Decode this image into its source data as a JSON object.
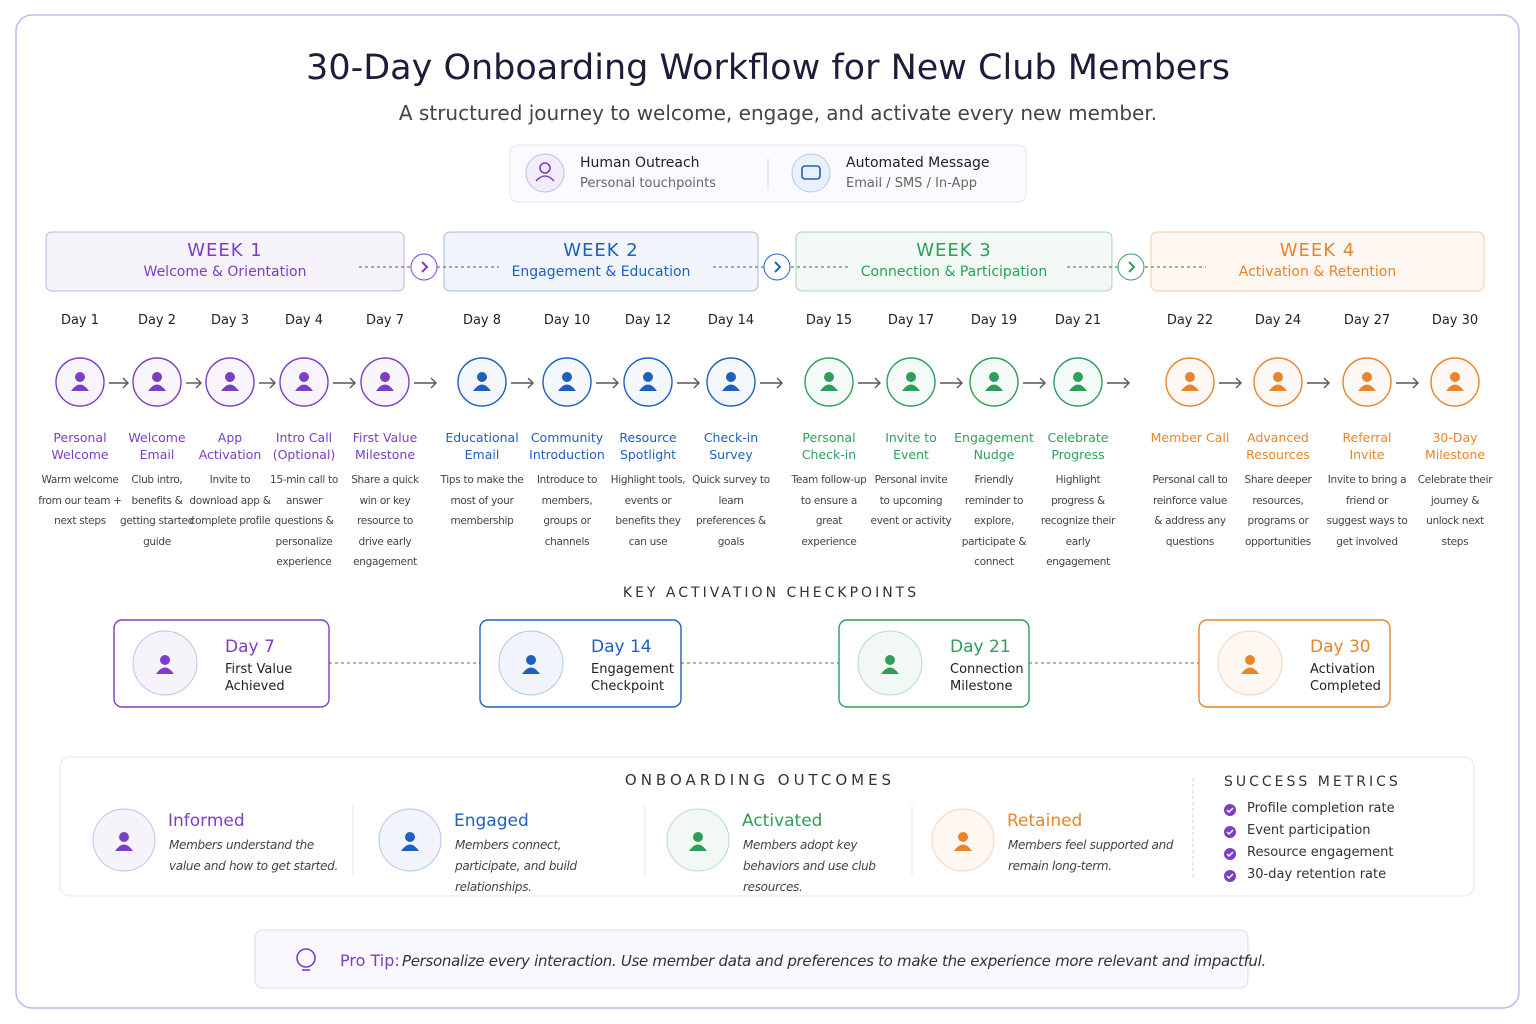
{
  "header": {
    "title": "30-Day Onboarding Workflow for New Club Members",
    "subtitle": "A structured journey to welcome, engage, and activate every new member."
  },
  "legend": [
    {
      "title": "Human Outreach",
      "subtitle": "Personal touchpoints"
    },
    {
      "title": "Automated Message",
      "subtitle": "Email / SMS / In-App"
    }
  ],
  "weeks": [
    {
      "label": "WEEK 1",
      "subtitle": "Welcome & Orientation",
      "color": "#7b3fc4",
      "steps": [
        {
          "day": "Day 1",
          "title": "Personal Welcome",
          "description": "Warm welcome from our team + next steps"
        },
        {
          "day": "Day 2",
          "title": "Welcome Email",
          "description": "Club intro, benefits & getting started guide"
        },
        {
          "day": "Day 3",
          "title": "App Activation",
          "description": "Invite to download app & complete profile"
        },
        {
          "day": "Day 4",
          "title": "Intro Call (Optional)",
          "description": "15-min call to answer questions & personalize experience"
        },
        {
          "day": "Day 7",
          "title": "First Value Milestone",
          "description": "Share a quick win or key resource to drive early engagement"
        }
      ]
    },
    {
      "label": "WEEK 2",
      "subtitle": "Engagement & Education",
      "color": "#1f5fbf",
      "steps": [
        {
          "day": "Day 8",
          "title": "Educational Email",
          "description": "Tips to make the most of your membership"
        },
        {
          "day": "Day 10",
          "title": "Community Introduction",
          "description": "Introduce to members, groups or channels"
        },
        {
          "day": "Day 12",
          "title": "Resource Spotlight",
          "description": "Highlight tools, events or benefits they can use"
        },
        {
          "day": "Day 14",
          "title": "Check-in Survey",
          "description": "Quick survey to learn preferences & goals"
        }
      ]
    },
    {
      "label": "WEEK 3",
      "subtitle": "Connection & Participation",
      "color": "#2f9e5a",
      "steps": [
        {
          "day": "Day 15",
          "title": "Personal Check-in",
          "description": "Team follow-up to ensure a great experience"
        },
        {
          "day": "Day 17",
          "title": "Invite to Event",
          "description": "Personal invite to upcoming event or activity"
        },
        {
          "day": "Day 19",
          "title": "Engagement Nudge",
          "description": "Friendly reminder to explore, participate & connect"
        },
        {
          "day": "Day 21",
          "title": "Celebrate Progress",
          "description": "Highlight progress & recognize their early engagement"
        }
      ]
    },
    {
      "label": "WEEK 4",
      "subtitle": "Activation & Retention",
      "color": "#e8842a",
      "steps": [
        {
          "day": "Day 22",
          "title": "Member Call",
          "description": "Personal call to reinforce value & address any questions"
        },
        {
          "day": "Day 24",
          "title": "Advanced Resources",
          "description": "Share deeper resources, programs or opportunities"
        },
        {
          "day": "Day 27",
          "title": "Referral Invite",
          "description": "Invite to bring a friend or suggest ways to get involved"
        },
        {
          "day": "Day 30",
          "title": "30-Day Milestone",
          "description": "Celebrate their journey & unlock next steps"
        }
      ]
    }
  ],
  "checkpoints": {
    "title": "KEY ACTIVATION CHECKPOINTS",
    "items": [
      {
        "day": "Day 7",
        "label": "First Value Achieved",
        "color": "#7b3fc4"
      },
      {
        "day": "Day 14",
        "label": "Engagement Checkpoint",
        "color": "#1f5fbf"
      },
      {
        "day": "Day 21",
        "label": "Connection Milestone",
        "color": "#2f9e5a"
      },
      {
        "day": "Day 30",
        "label": "Activation Completed",
        "color": "#e8842a"
      }
    ]
  },
  "outcomes": {
    "title": "ONBOARDING OUTCOMES",
    "items": [
      {
        "title": "Informed",
        "description": "Members understand the value and how to get started.",
        "color": "#7b3fc4"
      },
      {
        "title": "Engaged",
        "description": "Members connect, participate, and build relationships.",
        "color": "#1f5fbf"
      },
      {
        "title": "Activated",
        "description": "Members adopt key behaviors and use club resources.",
        "color": "#2f9e5a"
      },
      {
        "title": "Retained",
        "description": "Members feel supported and remain long-term.",
        "color": "#e8842a"
      }
    ]
  },
  "metrics": {
    "title": "SUCCESS METRICS",
    "items": [
      "Profile completion rate",
      "Event participation",
      "Resource engagement",
      "30-day retention rate"
    ]
  },
  "tip": {
    "label": "Pro Tip:",
    "text": "Personalize every interaction. Use member data and preferences to make the experience more relevant and impactful."
  }
}
